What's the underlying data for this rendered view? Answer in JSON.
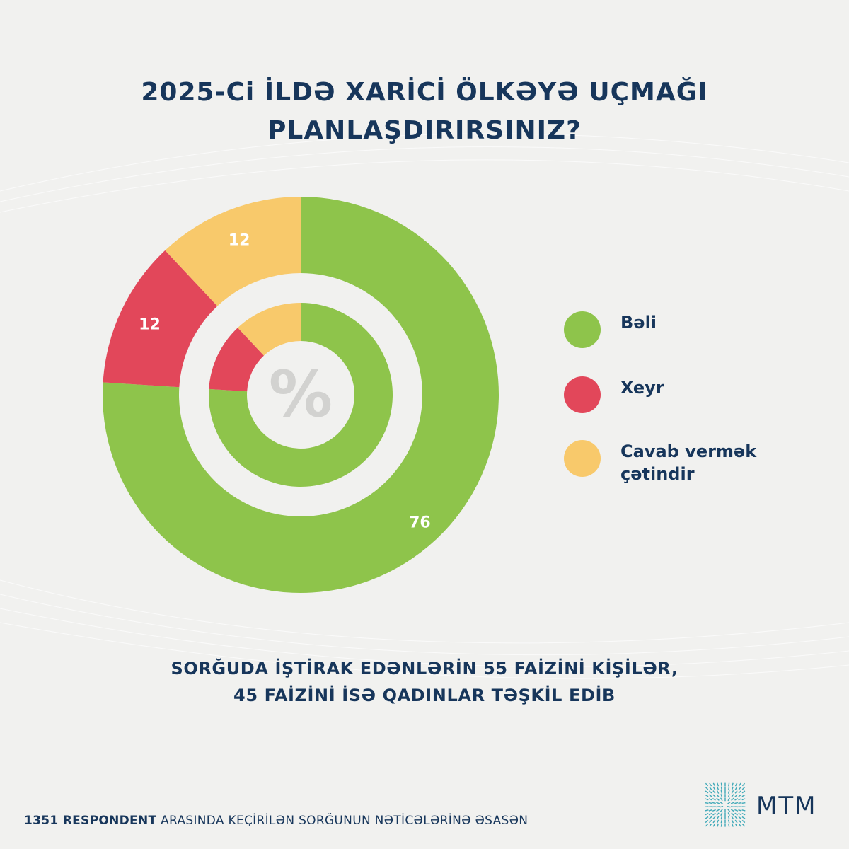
{
  "title": {
    "line1": "2025-Ci İLDƏ XARİCİ ÖLKƏYƏ UÇMAĞI",
    "line2": "PLANLAŞDIRIRSINIZ?"
  },
  "chart_data": {
    "type": "pie",
    "subtype": "donut",
    "unit": "%",
    "center_label": "%",
    "categories": [
      "Bəli",
      "Xeyr",
      "Cavab vermək çətindir"
    ],
    "values": [
      76,
      12,
      12
    ],
    "colors": [
      "#8ec44b",
      "#e2475a",
      "#f8c96b"
    ],
    "data_labels": [
      "76",
      "12",
      "12"
    ],
    "legend_position": "right"
  },
  "legend": [
    {
      "label": "Bəli",
      "color": "#8ec44b"
    },
    {
      "label": "Xeyr",
      "color": "#e2475a"
    },
    {
      "label": "Cavab vermək\nçətindir",
      "color": "#f8c96b"
    }
  ],
  "footnote": {
    "line1": "SORĞUDA İŞTİRAK EDƏNLƏRİN 55 FAİZİNİ KİŞİLƏR,",
    "line2": "45 FAİZİNİ İSƏ QADINLAR TƏŞKİL EDİB"
  },
  "source": {
    "bold": "1351 RESPONDENT",
    "rest": " ARASINDA KEÇİRİLƏN SORĞUNUN NƏTİCƏLƏRİNƏ ƏSASƏN"
  },
  "logo": {
    "text": "MTM",
    "icon": "mtm-logo-icon",
    "color": "#3fa9b8"
  }
}
